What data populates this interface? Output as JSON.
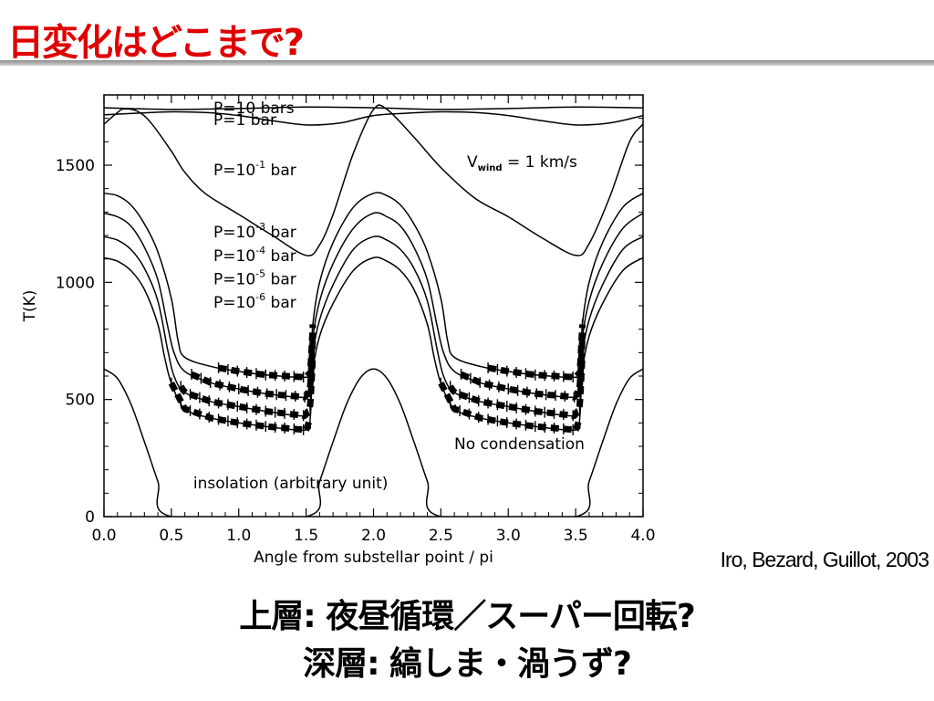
{
  "slide": {
    "title": "日変化はどこまで?",
    "citation": "Iro, Bezard, Guillot, 2003",
    "caption_line1": "上層: 夜昼循環／スーパー回転?",
    "caption_line2": "深層:  縞しま・渦うず?"
  },
  "chart_data": {
    "type": "line",
    "xlabel": "Angle from substellar point / pi",
    "ylabel": "T(K)",
    "xlim": [
      0.0,
      4.0
    ],
    "ylim": [
      0,
      1800
    ],
    "xticks": [
      "0.0",
      "0.5",
      "1.0",
      "1.5",
      "2.0",
      "2.5",
      "3.0",
      "3.5",
      "4.0"
    ],
    "yticks": [
      "0",
      "500",
      "1000",
      "1500"
    ],
    "annotations": [
      "V_wind = 1 km/s",
      "No condensation"
    ],
    "wind_label": {
      "main": "V",
      "sub": "wind",
      "rest": " = 1 km/s"
    },
    "series": [
      {
        "name": "P=10 bars",
        "label": {
          "base": "P=10",
          "exp": "",
          "unit": " bars"
        },
        "label_anchor": [
          0.65,
          1745
        ],
        "points": [
          [
            0,
            1745
          ],
          [
            0.5,
            1738
          ],
          [
            1,
            1742
          ],
          [
            1.5,
            1748
          ],
          [
            2,
            1745
          ],
          [
            2.5,
            1738
          ],
          [
            3,
            1742
          ],
          [
            3.5,
            1748
          ],
          [
            4,
            1745
          ]
        ]
      },
      {
        "name": "P=1 bar",
        "label": {
          "base": "P=1",
          "exp": "",
          "unit": " bar"
        },
        "label_anchor": [
          0.65,
          1695
        ],
        "points": [
          [
            0,
            1715
          ],
          [
            0.25,
            1722
          ],
          [
            0.5,
            1728
          ],
          [
            0.75,
            1725
          ],
          [
            1,
            1712
          ],
          [
            1.25,
            1690
          ],
          [
            1.5,
            1672
          ],
          [
            1.75,
            1680
          ],
          [
            2,
            1712
          ],
          [
            2.25,
            1722
          ],
          [
            2.5,
            1728
          ],
          [
            2.75,
            1725
          ],
          [
            3,
            1712
          ],
          [
            3.25,
            1690
          ],
          [
            3.5,
            1672
          ],
          [
            3.75,
            1680
          ],
          [
            4,
            1712
          ]
        ]
      },
      {
        "name": "P=10-1 bar",
        "label": {
          "base": "P=10",
          "exp": "-1",
          "unit": " bar"
        },
        "label_anchor": [
          0.65,
          1480
        ],
        "points": [
          [
            0,
            1675
          ],
          [
            0.1,
            1725
          ],
          [
            0.15,
            1740
          ],
          [
            0.25,
            1730
          ],
          [
            0.35,
            1680
          ],
          [
            0.5,
            1560
          ],
          [
            0.6,
            1470
          ],
          [
            0.75,
            1380
          ],
          [
            1,
            1290
          ],
          [
            1.25,
            1200
          ],
          [
            1.5,
            1115
          ],
          [
            1.6,
            1160
          ],
          [
            1.7,
            1290
          ],
          [
            1.85,
            1550
          ],
          [
            2,
            1738
          ],
          [
            2.1,
            1738
          ],
          [
            2.3,
            1620
          ],
          [
            2.5,
            1490
          ],
          [
            2.75,
            1360
          ],
          [
            3,
            1280
          ],
          [
            3.25,
            1190
          ],
          [
            3.5,
            1115
          ],
          [
            3.6,
            1165
          ],
          [
            3.75,
            1360
          ],
          [
            3.9,
            1600
          ],
          [
            4,
            1675
          ]
        ]
      },
      {
        "name": "P=10-3 bar",
        "label": {
          "base": "P=10",
          "exp": "-3",
          "unit": " bar"
        },
        "label_anchor": [
          0.65,
          1215
        ],
        "points": [
          [
            0,
            1380
          ],
          [
            0.1,
            1370
          ],
          [
            0.2,
            1330
          ],
          [
            0.3,
            1250
          ],
          [
            0.4,
            1130
          ],
          [
            0.5,
            930
          ],
          [
            0.55,
            750
          ],
          [
            0.6,
            680
          ],
          [
            0.8,
            640
          ],
          [
            1,
            620
          ],
          [
            1.2,
            605
          ],
          [
            1.5,
            595
          ],
          [
            1.53,
            620
          ],
          [
            1.55,
            820
          ],
          [
            1.6,
            1000
          ],
          [
            1.7,
            1170
          ],
          [
            1.85,
            1320
          ],
          [
            2,
            1380
          ],
          [
            2.1,
            1370
          ],
          [
            2.2,
            1330
          ],
          [
            2.3,
            1250
          ],
          [
            2.4,
            1130
          ],
          [
            2.5,
            930
          ],
          [
            2.55,
            750
          ],
          [
            2.6,
            680
          ],
          [
            2.8,
            640
          ],
          [
            3,
            620
          ],
          [
            3.2,
            605
          ],
          [
            3.5,
            595
          ],
          [
            3.53,
            620
          ],
          [
            3.55,
            820
          ],
          [
            3.6,
            1000
          ],
          [
            3.7,
            1170
          ],
          [
            3.85,
            1320
          ],
          [
            4,
            1380
          ]
        ]
      },
      {
        "name": "P=10-4 bar",
        "label": {
          "base": "P=10",
          "exp": "-4",
          "unit": " bar"
        },
        "label_anchor": [
          0.65,
          1115
        ],
        "points": [
          [
            0,
            1295
          ],
          [
            0.1,
            1280
          ],
          [
            0.2,
            1240
          ],
          [
            0.3,
            1150
          ],
          [
            0.4,
            1010
          ],
          [
            0.47,
            820
          ],
          [
            0.52,
            700
          ],
          [
            0.6,
            620
          ],
          [
            0.8,
            570
          ],
          [
            1,
            545
          ],
          [
            1.2,
            525
          ],
          [
            1.5,
            510
          ],
          [
            1.53,
            560
          ],
          [
            1.55,
            760
          ],
          [
            1.6,
            920
          ],
          [
            1.7,
            1080
          ],
          [
            1.85,
            1230
          ],
          [
            2,
            1295
          ],
          [
            2.1,
            1280
          ],
          [
            2.2,
            1240
          ],
          [
            2.3,
            1150
          ],
          [
            2.4,
            1010
          ],
          [
            2.47,
            820
          ],
          [
            2.52,
            700
          ],
          [
            2.6,
            620
          ],
          [
            2.8,
            570
          ],
          [
            3,
            545
          ],
          [
            3.2,
            525
          ],
          [
            3.5,
            510
          ],
          [
            3.53,
            560
          ],
          [
            3.55,
            760
          ],
          [
            3.6,
            920
          ],
          [
            3.7,
            1080
          ],
          [
            3.85,
            1230
          ],
          [
            4,
            1295
          ]
        ]
      },
      {
        "name": "P=10-5 bar",
        "label": {
          "base": "P=10",
          "exp": "-5",
          "unit": " bar"
        },
        "label_anchor": [
          0.65,
          1015
        ],
        "points": [
          [
            0,
            1195
          ],
          [
            0.1,
            1180
          ],
          [
            0.2,
            1140
          ],
          [
            0.3,
            1060
          ],
          [
            0.4,
            920
          ],
          [
            0.47,
            720
          ],
          [
            0.52,
            600
          ],
          [
            0.6,
            530
          ],
          [
            0.8,
            490
          ],
          [
            1,
            470
          ],
          [
            1.2,
            450
          ],
          [
            1.5,
            430
          ],
          [
            1.53,
            480
          ],
          [
            1.55,
            690
          ],
          [
            1.6,
            840
          ],
          [
            1.7,
            990
          ],
          [
            1.85,
            1140
          ],
          [
            2,
            1195
          ],
          [
            2.1,
            1180
          ],
          [
            2.2,
            1140
          ],
          [
            2.3,
            1060
          ],
          [
            2.4,
            920
          ],
          [
            2.47,
            720
          ],
          [
            2.52,
            600
          ],
          [
            2.6,
            530
          ],
          [
            2.8,
            490
          ],
          [
            3,
            470
          ],
          [
            3.2,
            450
          ],
          [
            3.5,
            430
          ],
          [
            3.53,
            480
          ],
          [
            3.55,
            690
          ],
          [
            3.6,
            840
          ],
          [
            3.7,
            990
          ],
          [
            3.85,
            1140
          ],
          [
            4,
            1195
          ]
        ]
      },
      {
        "name": "P=10-6 bar",
        "label": {
          "base": "P=10",
          "exp": "-6",
          "unit": " bar"
        },
        "label_anchor": [
          0.65,
          915
        ],
        "points": [
          [
            0,
            1105
          ],
          [
            0.1,
            1090
          ],
          [
            0.2,
            1050
          ],
          [
            0.3,
            970
          ],
          [
            0.4,
            820
          ],
          [
            0.45,
            680
          ],
          [
            0.5,
            570
          ],
          [
            0.6,
            460
          ],
          [
            0.8,
            420
          ],
          [
            1,
            400
          ],
          [
            1.2,
            385
          ],
          [
            1.5,
            370
          ],
          [
            1.53,
            420
          ],
          [
            1.55,
            620
          ],
          [
            1.6,
            770
          ],
          [
            1.7,
            910
          ],
          [
            1.85,
            1050
          ],
          [
            2,
            1105
          ],
          [
            2.1,
            1090
          ],
          [
            2.2,
            1050
          ],
          [
            2.3,
            970
          ],
          [
            2.4,
            820
          ],
          [
            2.45,
            680
          ],
          [
            2.5,
            570
          ],
          [
            2.6,
            460
          ],
          [
            2.8,
            420
          ],
          [
            3,
            400
          ],
          [
            3.2,
            385
          ],
          [
            3.5,
            370
          ],
          [
            3.53,
            420
          ],
          [
            3.55,
            620
          ],
          [
            3.6,
            770
          ],
          [
            3.7,
            910
          ],
          [
            3.85,
            1050
          ],
          [
            4,
            1105
          ]
        ]
      },
      {
        "name": "insolation (arbitrary unit)",
        "label": {
          "base": "insolation (arbitrary unit)",
          "exp": "",
          "unit": ""
        },
        "label_anchor": [
          0.5,
          145
        ],
        "points": [
          [
            0,
            630
          ],
          [
            0.1,
            590
          ],
          [
            0.2,
            480
          ],
          [
            0.3,
            320
          ],
          [
            0.4,
            150
          ],
          [
            0.5,
            0
          ],
          [
            1.5,
            0
          ],
          [
            1.6,
            150
          ],
          [
            1.7,
            320
          ],
          [
            1.8,
            480
          ],
          [
            1.9,
            590
          ],
          [
            2,
            630
          ],
          [
            2.1,
            590
          ],
          [
            2.2,
            480
          ],
          [
            2.3,
            320
          ],
          [
            2.4,
            150
          ],
          [
            2.5,
            0
          ],
          [
            3.5,
            0
          ],
          [
            3.6,
            150
          ],
          [
            3.7,
            320
          ],
          [
            3.8,
            480
          ],
          [
            3.9,
            590
          ],
          [
            4,
            630
          ]
        ]
      }
    ],
    "condensation_segments": [
      {
        "series": "P=10-3 bar",
        "x": [
          [
            0.85,
            1.55
          ],
          [
            2.85,
            3.55
          ]
        ]
      },
      {
        "series": "P=10-4 bar",
        "x": [
          [
            0.65,
            1.55
          ],
          [
            2.65,
            3.55
          ]
        ]
      },
      {
        "series": "P=10-5 bar",
        "x": [
          [
            0.57,
            1.55
          ],
          [
            2.57,
            3.55
          ]
        ]
      },
      {
        "series": "P=10-6 bar",
        "x": [
          [
            0.5,
            1.52
          ],
          [
            2.5,
            3.52
          ]
        ]
      }
    ]
  }
}
